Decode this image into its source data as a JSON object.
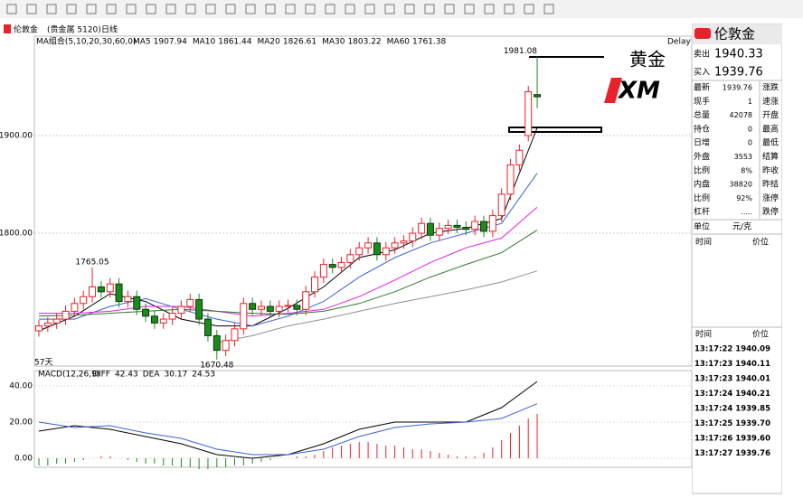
{
  "header": {
    "symbol": "伦敦金",
    "group": "(贵金属 5120)",
    "period": "日线"
  },
  "chart_data": {
    "type": "candlestick",
    "ma_label": "MA组合(5,10,20,30,60,0)",
    "delay": "Delay",
    "days_label": "57天",
    "ylim": [
      1663.9,
      2001.9
    ],
    "yticks": [
      {
        "value": 1800,
        "label": "1800.00"
      },
      {
        "value": 1900,
        "label": "1900.00"
      }
    ],
    "grid": true,
    "up_color": "#e8222a",
    "down_color": "#1a8c1a",
    "open": [
      1700,
      1705,
      1708,
      1712,
      1720,
      1728,
      1735,
      1745,
      1740,
      1748,
      1730,
      1735,
      1722,
      1715,
      1708,
      1712,
      1718,
      1725,
      1732,
      1712,
      1695,
      1680,
      1690,
      1702,
      1728,
      1722,
      1725,
      1720,
      1725,
      1726,
      1722,
      1740,
      1755,
      1768,
      1765,
      1770,
      1778,
      1785,
      1790,
      1778,
      1785,
      1790,
      1792,
      1800,
      1810,
      1798,
      1805,
      1808,
      1806,
      1804,
      1812,
      1802,
      1818,
      1840,
      1870,
      1900,
      1942
    ],
    "high": [
      1711,
      1714,
      1718,
      1726,
      1734,
      1741,
      1765.05,
      1751,
      1754,
      1754,
      1741,
      1741,
      1728,
      1721,
      1718,
      1724,
      1731,
      1738,
      1738,
      1718,
      1701,
      1696,
      1708,
      1734,
      1734,
      1731,
      1731,
      1731,
      1732,
      1732,
      1746,
      1761,
      1774,
      1774,
      1776,
      1784,
      1791,
      1796,
      1796,
      1791,
      1796,
      1798,
      1806,
      1816,
      1816,
      1811,
      1814,
      1814,
      1812,
      1818,
      1818,
      1824,
      1846,
      1876,
      1891,
      1951,
      1981.08
    ],
    "low": [
      1694,
      1699,
      1702,
      1706,
      1714,
      1722,
      1729,
      1734,
      1734,
      1724,
      1724,
      1716,
      1709,
      1702,
      1702,
      1706,
      1712,
      1719,
      1706,
      1689,
      1670.48,
      1674,
      1684,
      1696,
      1716,
      1716,
      1714,
      1714,
      1719,
      1716,
      1716,
      1734,
      1749,
      1759,
      1759,
      1764,
      1772,
      1779,
      1772,
      1772,
      1779,
      1784,
      1786,
      1794,
      1792,
      1792,
      1799,
      1800,
      1798,
      1798,
      1796,
      1796,
      1812,
      1834,
      1864,
      1894,
      1928
    ],
    "close": [
      1705,
      1708,
      1712,
      1720,
      1728,
      1735,
      1745,
      1740,
      1748,
      1730,
      1735,
      1722,
      1715,
      1708,
      1712,
      1718,
      1725,
      1732,
      1712,
      1695,
      1680,
      1690,
      1702,
      1728,
      1722,
      1725,
      1720,
      1725,
      1726,
      1722,
      1740,
      1755,
      1768,
      1765,
      1770,
      1778,
      1785,
      1790,
      1778,
      1785,
      1790,
      1792,
      1800,
      1810,
      1798,
      1805,
      1808,
      1806,
      1804,
      1812,
      1802,
      1818,
      1840,
      1870,
      1885,
      1945,
      1939.76
    ],
    "ma_x": [
      0,
      4,
      8,
      12,
      16,
      20,
      24,
      28,
      32,
      36,
      40,
      44,
      48,
      52,
      56
    ],
    "moving_averages": [
      {
        "name": "MA5",
        "color": "#000000",
        "values": [
          1700,
          1715,
          1738,
          1730,
          1712,
          1705,
          1705,
          1723,
          1745,
          1775,
          1783,
          1800,
          1805,
          1815,
          1907.94
        ]
      },
      {
        "name": "MA10",
        "color": "#3a62d8",
        "values": [
          1712,
          1712,
          1725,
          1733,
          1722,
          1712,
          1705,
          1715,
          1730,
          1755,
          1775,
          1790,
          1800,
          1810,
          1861.44
        ]
      },
      {
        "name": "MA20",
        "color": "#e020e0",
        "values": [
          1718,
          1718,
          1720,
          1725,
          1725,
          1720,
          1715,
          1718,
          1722,
          1735,
          1752,
          1770,
          1785,
          1795,
          1826.61
        ]
      },
      {
        "name": "MA30",
        "color": "#2a7a2a",
        "values": [
          1715,
          1716,
          1718,
          1720,
          1722,
          1720,
          1718,
          1717,
          1720,
          1728,
          1740,
          1755,
          1768,
          1780,
          1803.22
        ]
      },
      {
        "name": "MA60",
        "color": "#909090",
        "values": [
          null,
          null,
          null,
          null,
          null,
          1688,
          1695,
          1705,
          1712,
          1720,
          1728,
          1735,
          1742,
          1750,
          1761.38
        ]
      }
    ]
  },
  "macd": {
    "type": "macd",
    "title": "MACD(12,26,9)",
    "ylim": [
      -5,
      47.5
    ],
    "yticks": [
      {
        "value": 0,
        "label": "0.00"
      },
      {
        "value": 20,
        "label": "20.00"
      },
      {
        "value": 40,
        "label": "40.00"
      }
    ],
    "x": [
      0,
      4,
      8,
      12,
      16,
      20,
      24,
      28,
      32,
      36,
      40,
      44,
      48,
      52,
      56
    ],
    "diff": {
      "name": "DIFF",
      "color": "#000000",
      "values": [
        15,
        18,
        16,
        12,
        8,
        2,
        0,
        2,
        8,
        16,
        20,
        20,
        20,
        28,
        42.43
      ]
    },
    "dea": {
      "name": "DEA",
      "color": "#3a62d8",
      "values": [
        20,
        17,
        18,
        14,
        11,
        5,
        2,
        2,
        5,
        12,
        17,
        19,
        20,
        22,
        30.17
      ]
    },
    "histogram": {
      "up_color": "#e8222a",
      "down_color": "#1a8c1a",
      "values": [
        -4,
        -4,
        -3,
        -3,
        -2,
        -1,
        0,
        1,
        1,
        0,
        -1,
        -2,
        -3,
        -3,
        -4,
        -4,
        -5,
        -5,
        -6,
        -6,
        -5,
        -5,
        -4,
        -4,
        -3,
        -2,
        -1,
        0,
        0,
        1,
        1,
        2,
        4,
        6,
        7,
        8,
        9,
        9,
        8,
        7,
        7,
        6,
        5,
        5,
        4,
        3,
        2,
        1,
        1,
        1,
        3,
        6,
        10,
        14,
        18,
        22,
        24.53
      ]
    }
  },
  "annotations": {
    "title": "黄金",
    "logo_text": "XM"
  },
  "quote": {
    "symbol": "伦敦金",
    "sell": [
      "卖出",
      "1940.33"
    ],
    "buy": [
      "买入",
      "1939.76"
    ],
    "stats": [
      [
        "最新",
        "1939.76",
        "涨跌"
      ],
      [
        "现手",
        "1",
        "速涨"
      ],
      [
        "总量",
        "42078",
        "开盘"
      ],
      [
        "持仓",
        "0",
        "最高"
      ],
      [
        "日增",
        "0",
        "最低"
      ],
      [
        "外盘",
        "3553",
        "结算"
      ],
      [
        "比例",
        "8%",
        "昨收"
      ],
      [
        "内盘",
        "38820",
        "昨结"
      ],
      [
        "比例",
        "92%",
        "涨停"
      ],
      [
        "杠杆",
        ".....",
        "跌停"
      ]
    ],
    "unit": [
      "单位",
      "元/克"
    ],
    "header": [
      "时间",
      "价位"
    ],
    "ticks_header": [
      "时间",
      "价位"
    ],
    "ticks": [
      [
        "13:17:22",
        "1940.09"
      ],
      [
        "13:17:23",
        "1940.11"
      ],
      [
        "13:17:23",
        "1940.01"
      ],
      [
        "13:17:24",
        "1940.21"
      ],
      [
        "13:17:24",
        "1939.85"
      ],
      [
        "13:17:25",
        "1939.70"
      ],
      [
        "13:17:26",
        "1939.60"
      ],
      [
        "13:17:27",
        "1939.76"
      ]
    ]
  }
}
